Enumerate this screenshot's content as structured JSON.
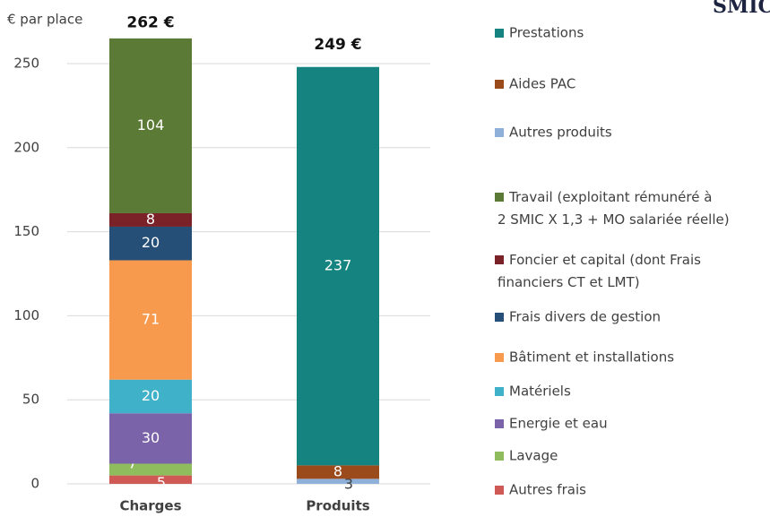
{
  "chart_data": {
    "type": "stacked_bar",
    "title": "SMIC/UM",
    "y_label": "€ par place",
    "categories": [
      "Charges",
      "Produits"
    ],
    "series": [
      {
        "name": "Prestations",
        "color": "#15837f",
        "values": [
          null,
          237
        ]
      },
      {
        "name": "Aides PAC",
        "color": "#9b4a1c",
        "values": [
          null,
          8
        ]
      },
      {
        "name": "Autres produits",
        "color": "#8fb0d8",
        "values": [
          null,
          3
        ]
      },
      {
        "name": "Travail (exploitant rémunéré à\n2 SMIC X 1,3 + MO salariée réelle)",
        "color": "#5b7a35",
        "values": [
          104,
          null
        ]
      },
      {
        "name": "Foncier et capital (dont Frais\nfinanciers CT et LMT)",
        "color": "#7a2228",
        "values": [
          8,
          null
        ]
      },
      {
        "name": "Frais divers de gestion",
        "color": "#264f78",
        "values": [
          20,
          null
        ]
      },
      {
        "name": "Bâtiment et installations",
        "color": "#f79a4e",
        "values": [
          71,
          null
        ]
      },
      {
        "name": "Matériels",
        "color": "#3fb1c9",
        "values": [
          20,
          null
        ]
      },
      {
        "name": "Energie et eau",
        "color": "#7b63a9",
        "values": [
          30,
          null
        ]
      },
      {
        "name": "Lavage",
        "color": "#8fbc5d",
        "values": [
          7,
          null
        ]
      },
      {
        "name": "Autres frais",
        "color": "#cf5a55",
        "values": [
          5,
          null
        ]
      }
    ],
    "totals": [
      262,
      249
    ],
    "total_labels": [
      "262 €",
      "249 €"
    ],
    "ylim": [
      0,
      250
    ],
    "yticks": [
      0,
      50,
      100,
      150,
      200,
      250
    ],
    "grid": true
  }
}
